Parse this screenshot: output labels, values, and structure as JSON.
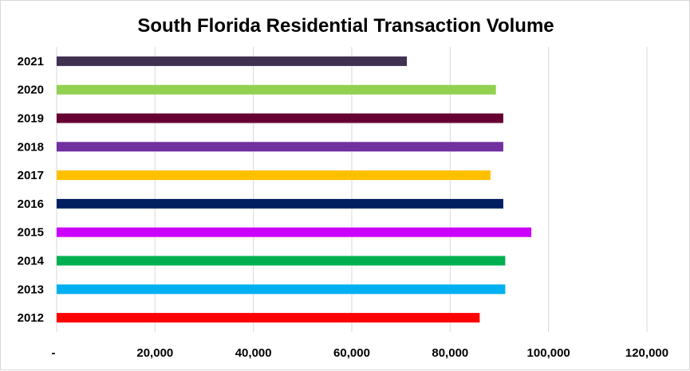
{
  "chart_data": {
    "type": "bar",
    "orientation": "horizontal",
    "title": "South Florida Residential Transaction Volume",
    "categories": [
      "2012",
      "2013",
      "2014",
      "2015",
      "2016",
      "2017",
      "2018",
      "2019",
      "2020",
      "2021"
    ],
    "values": [
      86000,
      91200,
      91200,
      96500,
      90800,
      88200,
      90800,
      90800,
      89300,
      71200
    ],
    "colors": [
      "#ff0000",
      "#00b0f0",
      "#00b050",
      "#cc00ff",
      "#002060",
      "#ffc000",
      "#7030a0",
      "#660033",
      "#92d050",
      "#403151"
    ],
    "x_ticks": [
      "-",
      "20,000",
      "40,000",
      "60,000",
      "80,000",
      "100,000",
      "120,000"
    ],
    "xlim": [
      0,
      120000
    ],
    "grid": true,
    "legend": false
  }
}
